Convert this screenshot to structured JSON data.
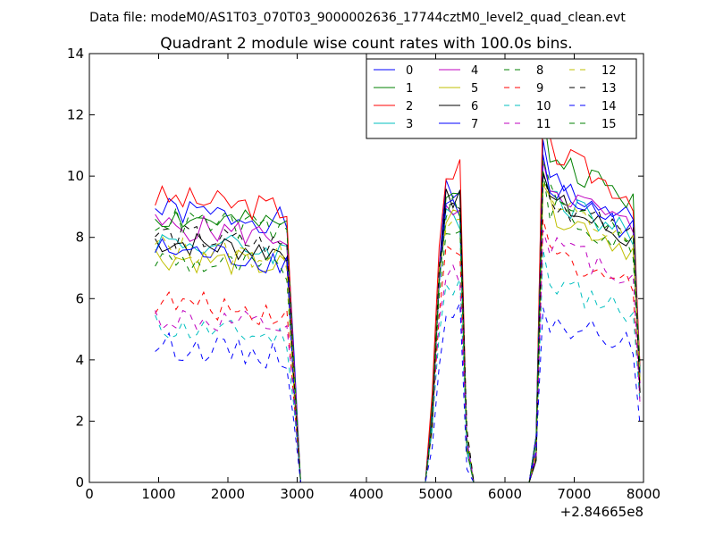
{
  "header": {
    "data_file": "Data file: modeM0/AS1T03_070T03_9000002636_17744cztM0_level2_quad_clean.evt",
    "title": "Quadrant 2 module wise count rates with 100.0s bins."
  },
  "chart_data": {
    "type": "line",
    "title": "Quadrant 2 module wise count rates with 100.0s bins.",
    "xlabel": "",
    "ylabel": "",
    "x_offset_label": "+2.84665e8",
    "xlim": [
      0,
      8000
    ],
    "ylim": [
      0,
      14
    ],
    "x_ticks": [
      0,
      1000,
      2000,
      3000,
      4000,
      5000,
      6000,
      7000,
      8000
    ],
    "y_ticks": [
      0,
      2,
      4,
      6,
      8,
      10,
      12,
      14
    ],
    "grid": false,
    "legend": {
      "placement": "top-right",
      "columns": 4
    },
    "time_bins": [
      950,
      1050,
      1150,
      1250,
      1350,
      1450,
      1550,
      1650,
      1750,
      1850,
      1950,
      2050,
      2150,
      2250,
      2350,
      2450,
      2550,
      2650,
      2750,
      2850,
      2950,
      3050,
      3150,
      3250,
      3350,
      3450,
      3550,
      3650,
      3750,
      3850,
      3950,
      4050,
      4150,
      4250,
      4350,
      4450,
      4550,
      4650,
      4750,
      4850,
      4950,
      5050,
      5150,
      5250,
      5350,
      5450,
      5550,
      5650,
      5750,
      5850,
      5950,
      6050,
      6150,
      6250,
      6350,
      6450,
      6550,
      6650,
      6750,
      6850,
      6950,
      7050,
      7150,
      7250,
      7350,
      7450,
      7550,
      7650,
      7750,
      7850,
      7950
    ],
    "series": [
      {
        "name": "0",
        "color": "#0000ff",
        "dash": "solid",
        "gti1": 8.9,
        "gti2": 9.6,
        "gti3": 10.0,
        "seed": 1
      },
      {
        "name": "1",
        "color": "#008000",
        "dash": "solid",
        "gti1": 8.7,
        "gti2": 9.3,
        "gti3": 10.8,
        "seed": 2
      },
      {
        "name": "2",
        "color": "#ff0000",
        "dash": "solid",
        "gti1": 9.3,
        "gti2": 10.2,
        "gti3": 11.0,
        "seed": 3
      },
      {
        "name": "3",
        "color": "#00bfbf",
        "dash": "solid",
        "gti1": 7.9,
        "gti2": 8.6,
        "gti3": 9.5,
        "seed": 4
      },
      {
        "name": "4",
        "color": "#bf00bf",
        "dash": "solid",
        "gti1": 8.4,
        "gti2": 9.0,
        "gti3": 9.8,
        "seed": 5
      },
      {
        "name": "5",
        "color": "#bfbf00",
        "dash": "solid",
        "gti1": 7.4,
        "gti2": 8.7,
        "gti3": 9.0,
        "seed": 6
      },
      {
        "name": "6",
        "color": "#000000",
        "dash": "solid",
        "gti1": 7.9,
        "gti2": 9.2,
        "gti3": 9.3,
        "seed": 7
      },
      {
        "name": "7",
        "color": "#0000ff",
        "dash": "solid",
        "gti1": 7.6,
        "gti2": 9.0,
        "gti3": 9.7,
        "seed": 8
      },
      {
        "name": "8",
        "color": "#008000",
        "dash": "dashed",
        "gti1": 7.3,
        "gti2": 8.3,
        "gti3": 9.1,
        "seed": 9
      },
      {
        "name": "9",
        "color": "#ff0000",
        "dash": "dashed",
        "gti1": 5.9,
        "gti2": 7.3,
        "gti3": 7.6,
        "seed": 10
      },
      {
        "name": "10",
        "color": "#00bfbf",
        "dash": "dashed",
        "gti1": 5.1,
        "gti2": 6.3,
        "gti3": 6.6,
        "seed": 11
      },
      {
        "name": "11",
        "color": "#bf00bf",
        "dash": "dashed",
        "gti1": 5.4,
        "gti2": 6.8,
        "gti3": 7.9,
        "seed": 12
      },
      {
        "name": "12",
        "color": "#bfbf00",
        "dash": "dashed",
        "gti1": 7.7,
        "gti2": 8.7,
        "gti3": 9.2,
        "seed": 13
      },
      {
        "name": "13",
        "color": "#000000",
        "dash": "dashed",
        "gti1": 8.1,
        "gti2": 8.8,
        "gti3": 9.4,
        "seed": 14
      },
      {
        "name": "14",
        "color": "#0000ff",
        "dash": "dashed",
        "gti1": 4.5,
        "gti2": 5.5,
        "gti3": 5.3,
        "seed": 15
      },
      {
        "name": "15",
        "color": "#008000",
        "dash": "dashed",
        "gti1": 8.6,
        "gti2": 9.0,
        "gti3": 9.6,
        "seed": 16
      }
    ]
  }
}
